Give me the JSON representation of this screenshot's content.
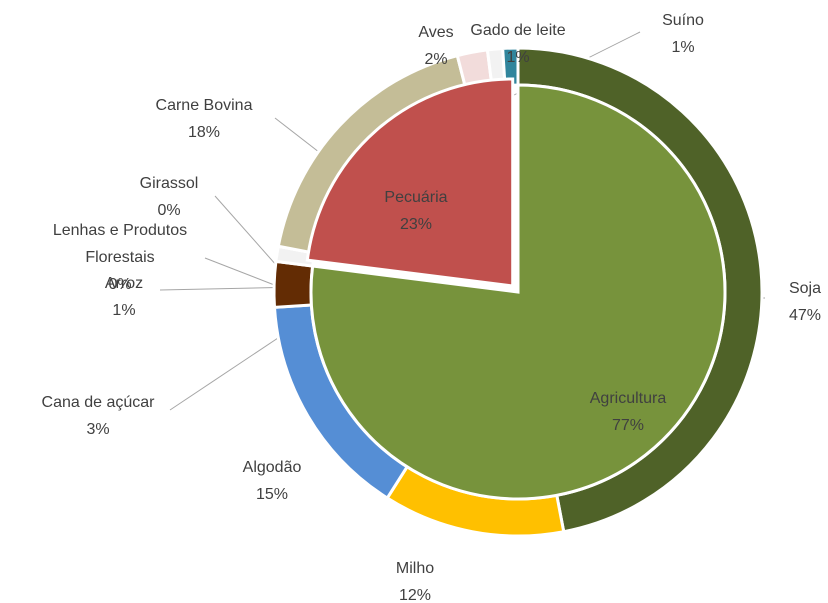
{
  "chart_data": {
    "type": "sunburst",
    "inner": {
      "categories": [
        "Agricultura",
        "Pecuária"
      ],
      "values": [
        77,
        23
      ],
      "value_labels": [
        "77%",
        "23%"
      ],
      "colors": [
        "#77933c",
        "#c0504d"
      ]
    },
    "outer": {
      "categories": [
        "Soja",
        "Milho",
        "Algodão",
        "Cana de açúcar",
        "Arroz",
        "Lenhas e Produtos Florestais",
        "Girassol",
        "Carne Bovina",
        "Aves",
        "Gado de leite",
        "Suíno"
      ],
      "values": [
        47,
        12,
        15,
        3,
        1,
        0,
        0,
        18,
        2,
        1,
        1
      ],
      "value_labels": [
        "47%",
        "12%",
        "15%",
        "3%",
        "1%",
        "0%",
        "0%",
        "18%",
        "2%",
        "1%",
        "1%"
      ],
      "colors": [
        "#4f6228",
        "#ffc000",
        "#558ed5",
        "#632c04",
        "#f2f2f2",
        "#ffffff",
        "#ffffff",
        "#c4bd97",
        "#f2dcdb",
        "#f2f2f2",
        "#31859c"
      ]
    }
  }
}
